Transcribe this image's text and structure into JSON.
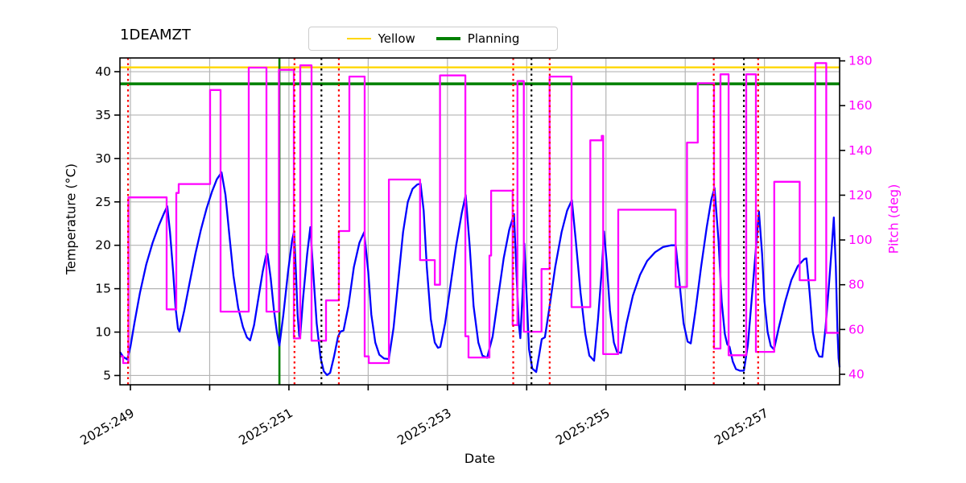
{
  "chart_data": {
    "type": "line",
    "title": "1DEAMZT",
    "xlabel": "Date",
    "ylabel_left": "Temperature (°C)",
    "ylabel_right": "Pitch (deg)",
    "x_axis": {
      "unit": "year:day-of-year",
      "range": [
        248.868,
        257.948
      ],
      "tick_labels": [
        {
          "day": 249,
          "label": "2025:249"
        },
        {
          "day": 251,
          "label": "2025:251"
        },
        {
          "day": 253,
          "label": "2025:253"
        },
        {
          "day": 255,
          "label": "2025:255"
        },
        {
          "day": 257,
          "label": "2025:257"
        }
      ],
      "minor_tick_days": [
        249,
        250,
        251,
        252,
        253,
        254,
        255,
        256,
        257
      ],
      "gridline_days": [
        249,
        250,
        251,
        252,
        253,
        254,
        255,
        256,
        257
      ]
    },
    "y_left": {
      "range": [
        3.93,
        41.58
      ],
      "ticks": [
        5,
        10,
        15,
        20,
        25,
        30,
        35,
        40
      ],
      "color": "#000000"
    },
    "y_right": {
      "range": [
        35.3,
        181.3
      ],
      "ticks": [
        40,
        60,
        80,
        100,
        120,
        140,
        160,
        180
      ],
      "color": "#ff00ff"
    },
    "legend": [
      {
        "label": "Yellow",
        "color": "#ffd700"
      },
      {
        "label": "Planning",
        "color": "#008000"
      }
    ],
    "limit_lines": [
      {
        "name": "Yellow",
        "temp": 40.5,
        "color": "#ffd700"
      },
      {
        "name": "Planning",
        "temp": 38.6,
        "color": "#008000"
      }
    ],
    "vlines": {
      "green_solid": [
        250.88
      ],
      "red_dotted": [
        248.97,
        251.07,
        251.63,
        253.83,
        254.29,
        256.36,
        256.92
      ],
      "black_dotted": [
        251.41,
        254.06,
        256.74
      ]
    },
    "series": [
      {
        "name": "1DEAMZT temperature model",
        "color": "#0000ff",
        "axis": "left",
        "points": [
          [
            248.868,
            7.7
          ],
          [
            248.91,
            7.15
          ],
          [
            248.96,
            6.85
          ],
          [
            249.0,
            8.3
          ],
          [
            249.05,
            11.0
          ],
          [
            249.12,
            14.5
          ],
          [
            249.2,
            17.8
          ],
          [
            249.28,
            20.3
          ],
          [
            249.36,
            22.3
          ],
          [
            249.42,
            23.6
          ],
          [
            249.465,
            24.5
          ],
          [
            249.5,
            21.5
          ],
          [
            249.54,
            16.8
          ],
          [
            249.57,
            12.8
          ],
          [
            249.6,
            10.4
          ],
          [
            249.62,
            10.05
          ],
          [
            249.68,
            12.5
          ],
          [
            249.75,
            15.8
          ],
          [
            249.82,
            19.0
          ],
          [
            249.89,
            21.8
          ],
          [
            249.96,
            24.2
          ],
          [
            250.03,
            26.2
          ],
          [
            250.09,
            27.6
          ],
          [
            250.15,
            28.4
          ],
          [
            250.2,
            25.8
          ],
          [
            250.25,
            21.0
          ],
          [
            250.3,
            16.5
          ],
          [
            250.36,
            12.8
          ],
          [
            250.42,
            10.6
          ],
          [
            250.47,
            9.4
          ],
          [
            250.51,
            9.05
          ],
          [
            250.56,
            10.8
          ],
          [
            250.62,
            14.2
          ],
          [
            250.67,
            17.0
          ],
          [
            250.71,
            18.8
          ],
          [
            250.73,
            19.0
          ],
          [
            250.77,
            16.2
          ],
          [
            250.81,
            12.6
          ],
          [
            250.85,
            9.9
          ],
          [
            250.88,
            8.45
          ],
          [
            250.93,
            12.0
          ],
          [
            250.99,
            17.0
          ],
          [
            251.04,
            20.6
          ],
          [
            251.065,
            21.6
          ],
          [
            251.09,
            16.5
          ],
          [
            251.11,
            12.0
          ],
          [
            251.13,
            9.6
          ],
          [
            251.14,
            9.3
          ],
          [
            251.18,
            14.0
          ],
          [
            251.23,
            19.0
          ],
          [
            251.27,
            22.1
          ],
          [
            251.31,
            16.5
          ],
          [
            251.35,
            11.0
          ],
          [
            251.4,
            7.0
          ],
          [
            251.44,
            5.5
          ],
          [
            251.48,
            5.05
          ],
          [
            251.52,
            5.3
          ],
          [
            251.57,
            7.2
          ],
          [
            251.62,
            9.5
          ],
          [
            251.65,
            10.05
          ],
          [
            251.69,
            10.2
          ],
          [
            251.75,
            13.0
          ],
          [
            251.82,
            17.5
          ],
          [
            251.89,
            20.3
          ],
          [
            251.95,
            21.5
          ],
          [
            252.0,
            17.0
          ],
          [
            252.04,
            12.0
          ],
          [
            252.09,
            8.8
          ],
          [
            252.14,
            7.4
          ],
          [
            252.2,
            6.95
          ],
          [
            252.26,
            6.9
          ],
          [
            252.32,
            10.5
          ],
          [
            252.38,
            16.0
          ],
          [
            252.44,
            21.5
          ],
          [
            252.5,
            25.0
          ],
          [
            252.56,
            26.5
          ],
          [
            252.62,
            27.0
          ],
          [
            252.66,
            27.1
          ],
          [
            252.7,
            24.0
          ],
          [
            252.74,
            17.5
          ],
          [
            252.79,
            11.5
          ],
          [
            252.84,
            8.8
          ],
          [
            252.88,
            8.2
          ],
          [
            252.91,
            8.3
          ],
          [
            252.97,
            11.0
          ],
          [
            253.04,
            15.5
          ],
          [
            253.11,
            20.0
          ],
          [
            253.18,
            23.7
          ],
          [
            253.23,
            25.8
          ],
          [
            253.28,
            20.0
          ],
          [
            253.33,
            13.0
          ],
          [
            253.39,
            8.8
          ],
          [
            253.44,
            7.3
          ],
          [
            253.5,
            7.05
          ],
          [
            253.57,
            9.5
          ],
          [
            253.64,
            14.0
          ],
          [
            253.71,
            18.5
          ],
          [
            253.78,
            21.8
          ],
          [
            253.84,
            23.6
          ],
          [
            253.87,
            17.0
          ],
          [
            253.9,
            11.0
          ],
          [
            253.92,
            9.3
          ],
          [
            253.95,
            15.0
          ],
          [
            253.97,
            20.2
          ],
          [
            254.0,
            14.0
          ],
          [
            254.03,
            8.0
          ],
          [
            254.07,
            5.8
          ],
          [
            254.12,
            5.4
          ],
          [
            254.16,
            7.5
          ],
          [
            254.19,
            9.2
          ],
          [
            254.23,
            9.4
          ],
          [
            254.29,
            13.0
          ],
          [
            254.36,
            17.5
          ],
          [
            254.44,
            21.5
          ],
          [
            254.51,
            24.0
          ],
          [
            254.57,
            25.2
          ],
          [
            254.62,
            20.5
          ],
          [
            254.68,
            14.5
          ],
          [
            254.74,
            9.8
          ],
          [
            254.79,
            7.3
          ],
          [
            254.85,
            6.7
          ],
          [
            254.9,
            11.5
          ],
          [
            254.95,
            17.5
          ],
          [
            254.975,
            21.6
          ],
          [
            255.01,
            18.0
          ],
          [
            255.05,
            12.5
          ],
          [
            255.1,
            8.8
          ],
          [
            255.14,
            7.7
          ],
          [
            255.19,
            7.6
          ],
          [
            255.26,
            11.0
          ],
          [
            255.34,
            14.2
          ],
          [
            255.43,
            16.6
          ],
          [
            255.52,
            18.2
          ],
          [
            255.62,
            19.2
          ],
          [
            255.72,
            19.8
          ],
          [
            255.82,
            20.0
          ],
          [
            255.88,
            20.0
          ],
          [
            255.93,
            15.5
          ],
          [
            255.98,
            11.0
          ],
          [
            256.03,
            8.9
          ],
          [
            256.07,
            8.7
          ],
          [
            256.13,
            12.5
          ],
          [
            256.2,
            17.5
          ],
          [
            256.27,
            22.0
          ],
          [
            256.33,
            25.3
          ],
          [
            256.37,
            26.6
          ],
          [
            256.42,
            20.5
          ],
          [
            256.46,
            13.5
          ],
          [
            256.5,
            9.8
          ],
          [
            256.53,
            8.6
          ],
          [
            256.56,
            8.3
          ],
          [
            256.6,
            6.6
          ],
          [
            256.64,
            5.75
          ],
          [
            256.69,
            5.55
          ],
          [
            256.74,
            5.55
          ],
          [
            256.79,
            8.5
          ],
          [
            256.85,
            15.0
          ],
          [
            256.9,
            20.5
          ],
          [
            256.93,
            23.9
          ],
          [
            256.97,
            19.0
          ],
          [
            257.0,
            13.5
          ],
          [
            257.04,
            10.0
          ],
          [
            257.08,
            8.4
          ],
          [
            257.12,
            8.0
          ],
          [
            257.18,
            10.5
          ],
          [
            257.26,
            13.5
          ],
          [
            257.34,
            16.0
          ],
          [
            257.42,
            17.6
          ],
          [
            257.5,
            18.4
          ],
          [
            257.53,
            18.5
          ],
          [
            257.57,
            14.5
          ],
          [
            257.61,
            10.0
          ],
          [
            257.65,
            8.0
          ],
          [
            257.69,
            7.2
          ],
          [
            257.73,
            7.15
          ],
          [
            257.77,
            10.5
          ],
          [
            257.81,
            15.0
          ],
          [
            257.85,
            20.0
          ],
          [
            257.875,
            23.2
          ],
          [
            257.9,
            17.5
          ],
          [
            257.92,
            10.5
          ],
          [
            257.935,
            7.0
          ],
          [
            257.948,
            5.95
          ]
        ]
      },
      {
        "name": "Pitch",
        "color": "#ff00ff",
        "axis": "right",
        "steps": [
          [
            248.868,
            248.909,
            48
          ],
          [
            248.909,
            248.975,
            45
          ],
          [
            248.975,
            249.457,
            119
          ],
          [
            249.457,
            249.579,
            69
          ],
          [
            249.579,
            249.609,
            121
          ],
          [
            249.609,
            250.006,
            125
          ],
          [
            250.006,
            250.138,
            167
          ],
          [
            250.138,
            250.493,
            68
          ],
          [
            250.493,
            250.716,
            177
          ],
          [
            250.716,
            250.874,
            68
          ],
          [
            250.874,
            251.062,
            176
          ],
          [
            251.062,
            251.143,
            56
          ],
          [
            251.143,
            251.285,
            178
          ],
          [
            251.285,
            251.468,
            55
          ],
          [
            251.468,
            251.631,
            73
          ],
          [
            251.631,
            251.763,
            104
          ],
          [
            251.763,
            251.956,
            173
          ],
          [
            251.956,
            252.007,
            48
          ],
          [
            252.007,
            252.261,
            45
          ],
          [
            252.261,
            252.654,
            127
          ],
          [
            252.654,
            252.84,
            91
          ],
          [
            252.84,
            252.906,
            80
          ],
          [
            252.906,
            253.226,
            173.5
          ],
          [
            253.226,
            253.266,
            57
          ],
          [
            253.266,
            253.53,
            47.5
          ],
          [
            253.53,
            253.551,
            93
          ],
          [
            253.551,
            253.822,
            122
          ],
          [
            253.822,
            253.883,
            62
          ],
          [
            253.883,
            253.964,
            171
          ],
          [
            253.964,
            254.187,
            59
          ],
          [
            254.187,
            254.289,
            87
          ],
          [
            254.289,
            254.566,
            173
          ],
          [
            254.566,
            254.803,
            70
          ],
          [
            254.803,
            254.947,
            144.5
          ],
          [
            254.947,
            254.965,
            146.5
          ],
          [
            254.965,
            255.155,
            49
          ],
          [
            255.155,
            255.879,
            113.5
          ],
          [
            255.879,
            256.022,
            79
          ],
          [
            256.022,
            256.158,
            143.5
          ],
          [
            256.158,
            256.364,
            170
          ],
          [
            256.364,
            256.445,
            51.5
          ],
          [
            256.445,
            256.547,
            174
          ],
          [
            256.547,
            256.77,
            48.5
          ],
          [
            256.77,
            256.892,
            174
          ],
          [
            256.892,
            257.123,
            50
          ],
          [
            257.123,
            257.444,
            126
          ],
          [
            257.444,
            257.641,
            82
          ],
          [
            257.641,
            257.779,
            179
          ],
          [
            257.779,
            257.948,
            58.5
          ]
        ]
      }
    ]
  },
  "colors": {
    "temperature_line": "#0000ff",
    "pitch_line": "#ff00ff",
    "yellow_limit": "#ffd700",
    "planning_limit": "#008000",
    "green_vline": "#008000",
    "red_vline": "#ff0000",
    "black_vline": "#000000",
    "grid": "#b4b4b4",
    "spine": "#000000",
    "legend_border": "#cccccc"
  }
}
